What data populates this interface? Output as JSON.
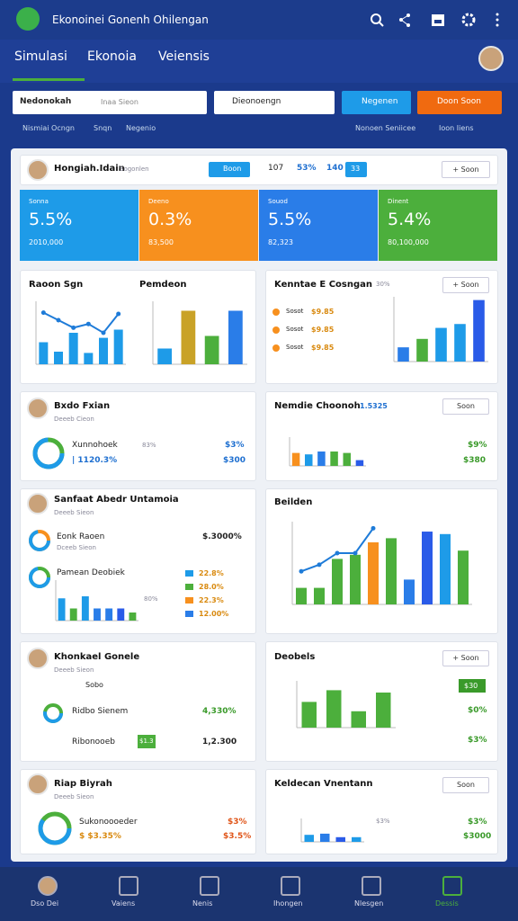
{
  "header": {
    "title": "Ekonoinei Gonenh Ohilengan"
  },
  "tabs": [
    "Simulasi",
    "Ekonoia",
    "Veiensis"
  ],
  "search": {
    "field1": "Nedonokah",
    "field1_hint": "Inaa Sieon",
    "field2": "Dieonoengn",
    "button1": "Negenen",
    "button2": "Doon Soon"
  },
  "links": [
    "Nismiai Ocngn",
    "Snqn",
    "Negenio"
  ],
  "links_right": [
    "Nonoen Seniicee",
    "Ioon Iiens"
  ],
  "panel": {
    "title": "Hongiah.Idain",
    "subtitle": "Sogonlen",
    "button": "Boon",
    "stats": [
      "107",
      "53%",
      "140"
    ],
    "badge": "33",
    "action": "Soon"
  },
  "kpis": [
    {
      "label": "Sonna",
      "value": "5.5%",
      "sub": "2010,000",
      "color": "#1e9be8"
    },
    {
      "label": "Deeno",
      "value": "0.3%",
      "sub": "83,500",
      "color": "#f7901e"
    },
    {
      "label": "Souod",
      "value": "5.5%",
      "sub": "82,323",
      "color": "#2a7de8"
    },
    {
      "label": "Dinent",
      "value": "5.4%",
      "sub": "80,100,000",
      "color": "#4caf3c"
    }
  ],
  "cards": {
    "c1": {
      "title": "Raoon Sgn",
      "title2": "Pemdeon"
    },
    "c2": {
      "title": "Kenntae E Cosngan",
      "stat": "30%",
      "button": "Soon",
      "items": [
        {
          "label": "Sosot",
          "value": "$9.85"
        },
        {
          "label": "Sosot",
          "value": "$9.85"
        },
        {
          "label": "Sosot",
          "value": "$9.85"
        }
      ]
    },
    "c3": {
      "title": "Bxdo Fxian",
      "subtitle": "Deeeb Cieon",
      "row1": [
        "Xunnohoek",
        "83%",
        "$3%"
      ],
      "row2": [
        "| 1120.3%",
        "$300"
      ]
    },
    "c4": {
      "title": "Nemdie Choonoh",
      "stat": "1.5325",
      "button": "Soon",
      "values": [
        "$9%",
        "$380"
      ]
    },
    "c5": {
      "title": "Sanfaat Abedr Untamoia",
      "subtitle": "Deeeb Sieon",
      "row1": [
        "Eonk Raoen",
        "Dceeb Sieon",
        "$.3000%"
      ],
      "row2": "Pamean Deobiek",
      "stat": "80%",
      "list": [
        "22.8%",
        "28.0%",
        "22.3%",
        "12.00%"
      ]
    },
    "c6": {
      "title": "Beilden"
    },
    "c7": {
      "title": "Khonkael Gonele",
      "subtitle": "Deeeb Sieon",
      "row1": "Sobo",
      "row2": [
        "Ridbo Sienem",
        "4,330%"
      ],
      "row3": [
        "Ribonooeb",
        "$1.3",
        "1,2.300"
      ]
    },
    "c8": {
      "title": "Deobels",
      "button": "Soon",
      "badge": "$30",
      "values": [
        "$0%",
        "$3%"
      ]
    },
    "c9": {
      "title": "Riap Biyrah",
      "subtitle": "Deeeb Sieon",
      "row1": [
        "Sukonoooeder",
        "$3%"
      ],
      "row2": [
        "$ $3.35%",
        "$3.5%"
      ]
    },
    "c10": {
      "title": "Keldecan Vnentann",
      "button": "Soon",
      "stat": "$3%",
      "values": [
        "$3%",
        "$3000"
      ]
    }
  },
  "charts": [
    {
      "bars": [
        35,
        20,
        50,
        18,
        42,
        55
      ],
      "colors": [
        "#1e9be8"
      ],
      "line": [
        82,
        70,
        58,
        64,
        50,
        80
      ],
      "line_color": "#1e7bd8",
      "ylim": [
        0,
        100
      ]
    },
    {
      "bars": [
        25,
        85,
        45,
        85
      ],
      "colors": [
        "#1e9be8",
        "#c9a227",
        "#4caf3c",
        "#2a7de8"
      ],
      "ylim": [
        0,
        100
      ]
    },
    {
      "bars": [
        22,
        35,
        52,
        58,
        95
      ],
      "colors": [
        "#2a7de8",
        "#4caf3c",
        "#1e9be8",
        "#1e9be8",
        "#2a5be8"
      ],
      "ylim": [
        0,
        100
      ]
    },
    {
      "bars": [
        45,
        40,
        50,
        50,
        45,
        20
      ],
      "colors": [
        "#f7901e",
        "#1e9be8",
        "#2a7de8",
        "#4caf3c",
        "#4caf3c",
        "#2a5be8"
      ],
      "ylim": [
        0,
        100
      ]
    },
    {
      "bars": [
        55,
        30,
        60,
        30,
        30,
        30,
        20
      ],
      "colors": [
        "#1e9be8",
        "#4caf3c",
        "#1e9be8",
        "#2a7de8",
        "#2a7de8",
        "#2a5be8",
        "#4caf3c"
      ],
      "ylim": [
        0,
        100
      ]
    },
    {
      "bars": [
        20,
        20,
        55,
        60,
        75,
        80,
        30,
        88,
        85,
        65
      ],
      "colors": [
        "#4caf3c",
        "#4caf3c",
        "#4caf3c",
        "#4caf3c",
        "#f7901e",
        "#4caf3c",
        "#2a7de8",
        "#2a5be8",
        "#1e9be8",
        "#4caf3c"
      ],
      "line": [
        40,
        48,
        62,
        62,
        92
      ],
      "line_color": "#1e7bd8",
      "ylim": [
        0,
        100
      ]
    },
    {
      "bars": [
        55,
        80,
        35,
        75
      ],
      "colors": [
        "#4caf3c"
      ],
      "ylim": [
        0,
        100
      ]
    },
    {
      "bars": [
        30,
        35,
        20,
        20
      ],
      "colors": [
        "#1e9be8",
        "#2a7de8",
        "#2a5be8",
        "#1e9be8"
      ],
      "ylim": [
        0,
        100
      ]
    }
  ],
  "nav": [
    "Dso Dei",
    "Vaiens",
    "Nenis",
    "Ihongen",
    "Nlesgen",
    "Dessis"
  ]
}
